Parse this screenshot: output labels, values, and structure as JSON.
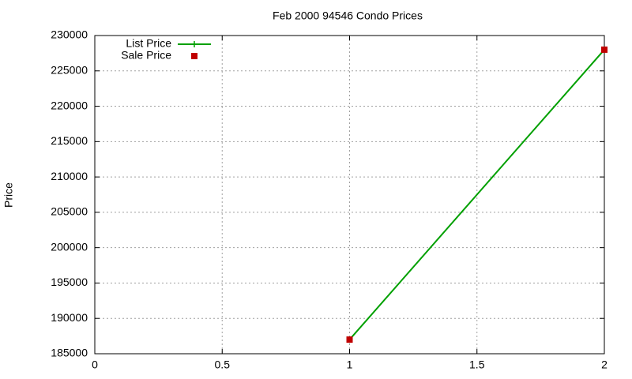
{
  "chart_data": {
    "type": "line",
    "title": "Feb 2000 94546 Condo Prices",
    "y_label": "Price",
    "x": [
      1,
      2
    ],
    "series": [
      {
        "name": "List Price",
        "color": "#00a000",
        "mode": "lines+markers",
        "values": [
          187000,
          228000
        ]
      },
      {
        "name": "Sale Price",
        "color": "#c00000",
        "mode": "markers",
        "values": [
          187000,
          228000
        ]
      }
    ],
    "xlim": [
      0,
      2
    ],
    "xticks": [
      0,
      0.5,
      1,
      1.5,
      2
    ],
    "ylim": [
      185000,
      230000
    ],
    "yticks": [
      185000,
      190000,
      195000,
      200000,
      205000,
      210000,
      215000,
      220000,
      225000,
      230000
    ],
    "grid": true,
    "legend": "top-left"
  }
}
